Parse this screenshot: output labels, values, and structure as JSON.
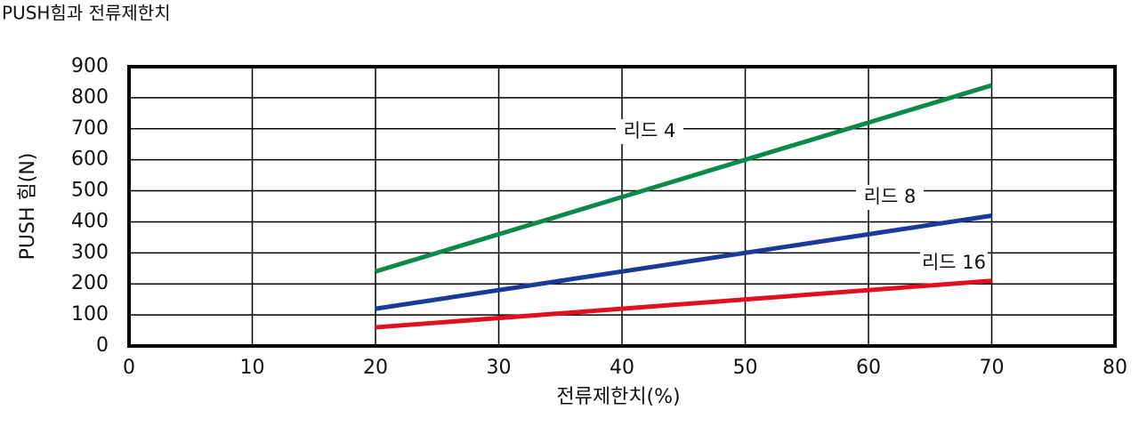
{
  "chart_data": {
    "type": "line",
    "title": "PUSH힘과 전류제한치",
    "x_label": "전류제한치(%)",
    "y_label": "PUSH 힘(N)",
    "x": [
      20,
      70
    ],
    "series": [
      {
        "name": "리드 4",
        "color": "#0a8a4a",
        "values": [
          240,
          840
        ]
      },
      {
        "name": "리드 8",
        "color": "#1a3a9a",
        "values": [
          120,
          420
        ]
      },
      {
        "name": "리드 16",
        "color": "#e0101e",
        "values": [
          60,
          210
        ]
      }
    ],
    "xlim": [
      0,
      80
    ],
    "xticks": [
      0,
      10,
      20,
      30,
      40,
      50,
      60,
      70,
      80
    ],
    "ylim": [
      0,
      900
    ],
    "yticks": [
      0,
      100,
      200,
      300,
      400,
      500,
      600,
      700,
      800,
      900
    ],
    "grid": true
  }
}
